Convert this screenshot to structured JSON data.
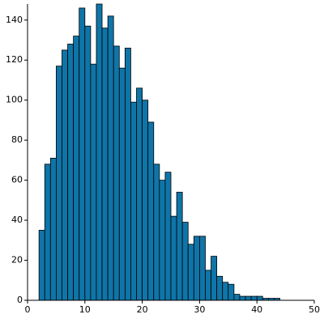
{
  "chart_data": {
    "type": "histogram",
    "bins": [
      2,
      3,
      4,
      5,
      6,
      7,
      8,
      9,
      10,
      11,
      12,
      13,
      14,
      15,
      16,
      17,
      18,
      19,
      20,
      21,
      22,
      23,
      24,
      25,
      26,
      27,
      28,
      29,
      30,
      31,
      32,
      33,
      34,
      35,
      36,
      37,
      38,
      39,
      40,
      41,
      42,
      43,
      44
    ],
    "values": [
      35,
      68,
      71,
      117,
      125,
      128,
      132,
      146,
      137,
      118,
      148,
      136,
      142,
      127,
      116,
      126,
      99,
      106,
      100,
      89,
      68,
      60,
      64,
      42,
      54,
      39,
      28,
      32,
      32,
      15,
      22,
      12,
      9,
      8,
      3,
      2,
      2,
      2,
      2,
      1,
      1,
      1
    ],
    "color": "#0f75a8",
    "xlim": [
      0,
      50
    ],
    "xticks": [
      0,
      10,
      20,
      30,
      40,
      50
    ],
    "ylim": [
      0,
      148
    ],
    "yticks": [
      0,
      20,
      40,
      60,
      80,
      100,
      120,
      140
    ]
  }
}
